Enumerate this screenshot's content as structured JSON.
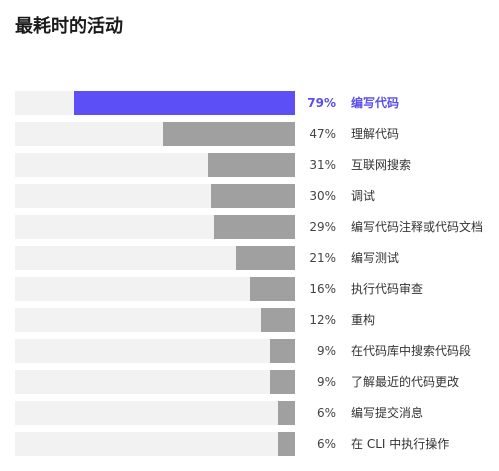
{
  "title": "最耗时的活动",
  "colors": {
    "highlight": "#5b4ff5",
    "bar": "#a0a0a0",
    "track": "#f2f2f2",
    "highlight_text": "#5b4df0"
  },
  "chart_data": {
    "type": "bar",
    "orientation": "horizontal",
    "bar_direction": "right-to-left",
    "title": "最耗时的活动",
    "xlim": [
      0,
      100
    ],
    "unit": "%",
    "grid": false,
    "legend": "none",
    "highlighted_category": "编写代码",
    "categories": [
      "编写代码",
      "理解代码",
      "互联网搜索",
      "调试",
      "编写代码注释或代码文档",
      "编写测试",
      "执行代码审查",
      "重构",
      "在代码库中搜索代码段",
      "了解最近的代码更改",
      "编写提交消息",
      "在 CLI 中执行操作"
    ],
    "values": [
      79,
      47,
      31,
      30,
      29,
      21,
      16,
      12,
      9,
      9,
      6,
      6
    ],
    "value_labels": [
      "79%",
      "47%",
      "31%",
      "30%",
      "29%",
      "21%",
      "16%",
      "12%",
      "9%",
      "9%",
      "6%",
      "6%"
    ]
  }
}
